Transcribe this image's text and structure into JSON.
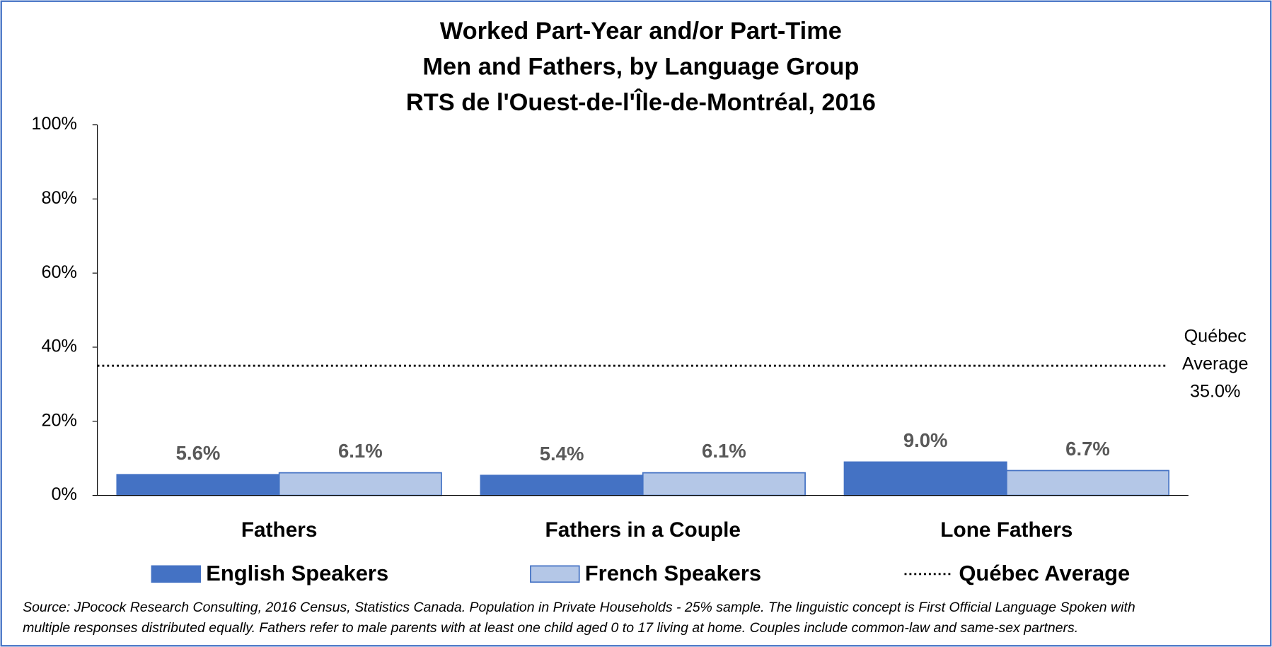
{
  "chart_data": {
    "type": "bar",
    "title": [
      "Worked Part-Year and/or Part-Time",
      "Men and Fathers, by Language Group",
      "RTS de l'Ouest-de-l'Île-de-Montréal, 2016"
    ],
    "categories": [
      "Fathers",
      "Fathers in a Couple",
      "Lone Fathers"
    ],
    "series": [
      {
        "name": "English Speakers",
        "color": "#4472c4",
        "values": [
          5.6,
          5.4,
          9.0
        ],
        "value_labels": [
          "5.6%",
          "5.4%",
          "9.0%"
        ]
      },
      {
        "name": "French Speakers",
        "color": "#b4c7e7",
        "values": [
          6.1,
          6.1,
          6.7
        ],
        "value_labels": [
          "6.1%",
          "6.1%",
          "6.7%"
        ]
      }
    ],
    "reference_line": {
      "name": "Québec Average",
      "value": 35.0,
      "label": [
        "Québec",
        "Average",
        "35.0%"
      ]
    },
    "ylim": [
      0,
      100
    ],
    "yticks": [
      {
        "value": 0,
        "label": "0%"
      },
      {
        "value": 20,
        "label": "20%"
      },
      {
        "value": 40,
        "label": "40%"
      },
      {
        "value": 60,
        "label": "60%"
      },
      {
        "value": 80,
        "label": "80%"
      },
      {
        "value": 100,
        "label": "100%"
      }
    ],
    "grid": false,
    "legend": "bottom",
    "source": [
      "Source: JPocock Research Consulting, 2016 Census, Statistics Canada. Population in Private Households - 25% sample. The linguistic concept is First Official Language Spoken with",
      "multiple responses distributed equally. Fathers refer to male parents with at least one child aged 0 to 17 living at home. Couples include common-law and same-sex partners."
    ]
  }
}
